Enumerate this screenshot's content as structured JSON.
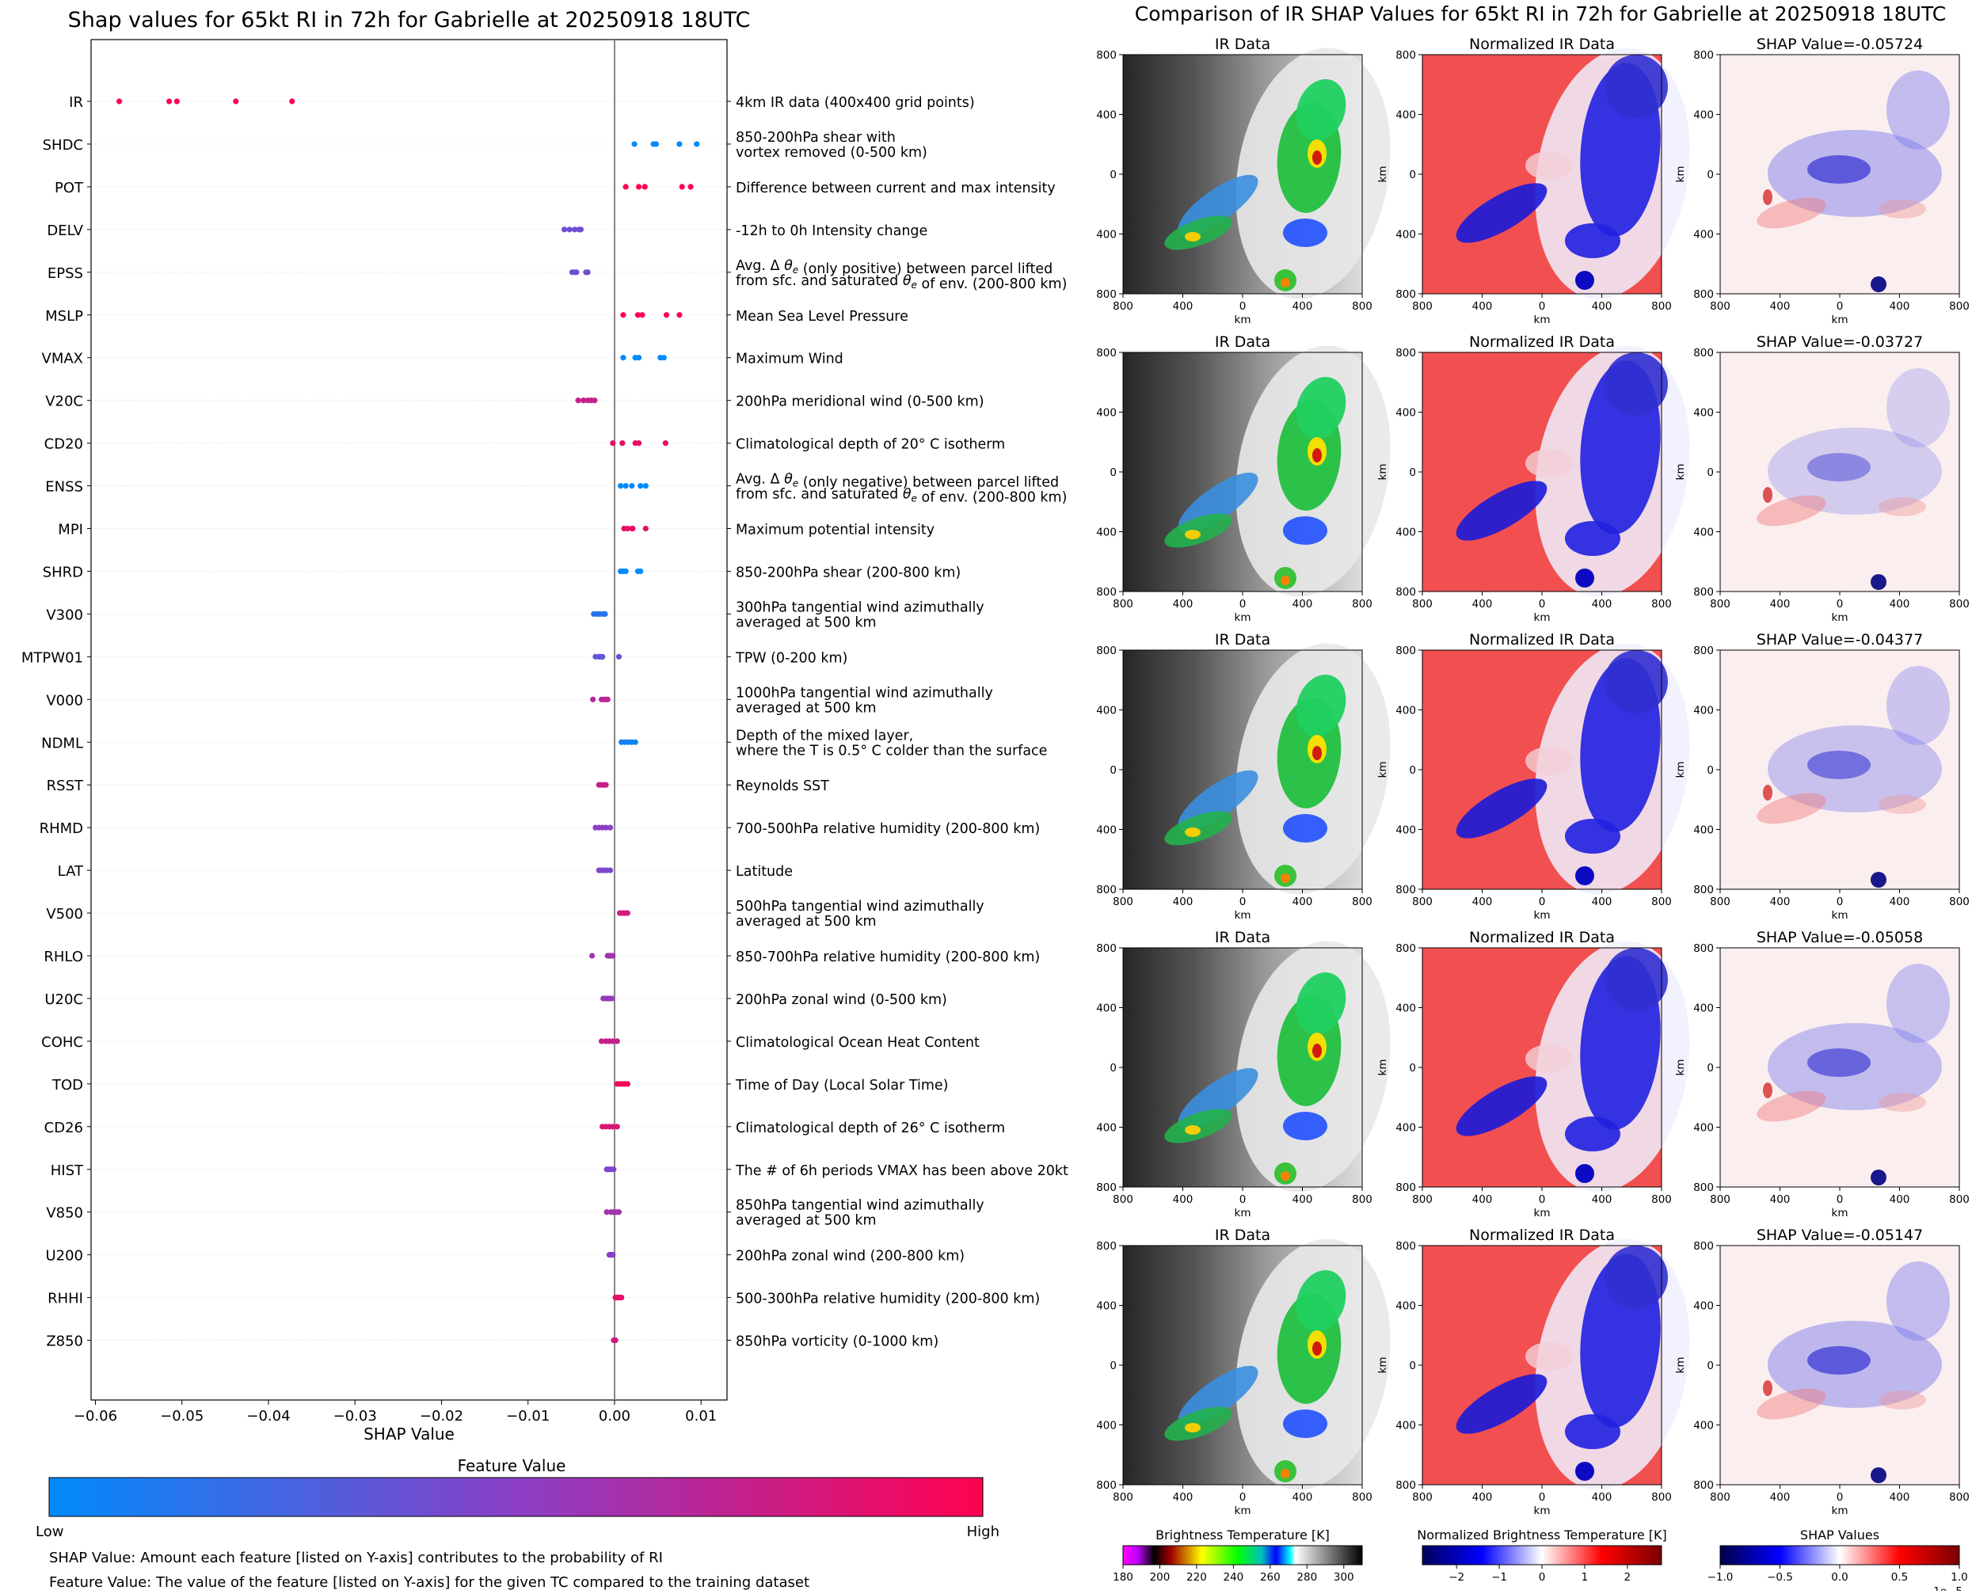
{
  "left_title": "Shap values for 65kt RI in 72h for Gabrielle at 20250918 18UTC",
  "right_title": "Comparison of IR SHAP Values for 65kt RI in 72h for Gabrielle at 20250918 18UTC",
  "colors": {
    "low": "#008afb",
    "mid": "#8a3fc6",
    "high": "#ff0150"
  },
  "chart_data": [
    {
      "type": "scatter",
      "title": "Shap values for 65kt RI in 72h for Gabrielle at 20250918 18UTC",
      "xlabel": "SHAP Value",
      "xlim": [
        -0.0605,
        0.013
      ],
      "xticks": [
        -0.06,
        -0.05,
        -0.04,
        -0.03,
        -0.02,
        -0.01,
        0.0,
        0.01
      ],
      "xtick_labels": [
        "−0.06",
        "−0.05",
        "−0.04",
        "−0.03",
        "−0.02",
        "−0.01",
        "0.00",
        "0.01"
      ],
      "colorbar": {
        "title": "Feature Value",
        "low_label": "Low",
        "high_label": "High"
      },
      "features": [
        {
          "name": "IR",
          "desc": [
            "4km IR data (400x400 grid points)"
          ],
          "fv": 1.0,
          "points": [
            -0.05724,
            -0.05147,
            -0.05058,
            -0.04377,
            -0.03727
          ]
        },
        {
          "name": "SHDC",
          "desc": [
            "850-200hPa shear with",
            "vortex removed (0-500 km)"
          ],
          "fv": 0.0,
          "points": [
            0.0023,
            0.0045,
            0.0048,
            0.0075,
            0.0095
          ]
        },
        {
          "name": "POT",
          "desc": [
            "Difference between current and max intensity"
          ],
          "fv": 1.0,
          "points": [
            0.0013,
            0.0028,
            0.0035,
            0.0078,
            0.0088
          ]
        },
        {
          "name": "DELV",
          "desc": [
            "-12h to 0h Intensity change"
          ],
          "fv": 0.4,
          "points": [
            -0.0058,
            -0.0052,
            -0.0046,
            -0.0041,
            -0.0039
          ]
        },
        {
          "name": "EPSS",
          "desc": [
            "Avg. Δ θe (only positive) between parcel lifted",
            "from sfc. and saturated θe of env. (200-800 km)"
          ],
          "fv": 0.4,
          "points": [
            -0.0049,
            -0.0046,
            -0.0044,
            -0.0033,
            -0.0031
          ]
        },
        {
          "name": "MSLP",
          "desc": [
            "Mean Sea Level Pressure"
          ],
          "fv": 1.0,
          "points": [
            0.001,
            0.0027,
            0.0032,
            0.006,
            0.0075
          ]
        },
        {
          "name": "VMAX",
          "desc": [
            "Maximum Wind"
          ],
          "fv": 0.0,
          "points": [
            0.001,
            0.0024,
            0.0028,
            0.0053,
            0.0057
          ]
        },
        {
          "name": "V20C",
          "desc": [
            "200hPa meridional wind (0-500 km)"
          ],
          "fv": 0.75,
          "points": [
            -0.0042,
            -0.0036,
            -0.0031,
            -0.0027,
            -0.0023
          ]
        },
        {
          "name": "CD20",
          "desc": [
            "Climatological depth of 20° C isotherm"
          ],
          "fv": 0.9,
          "points": [
            -0.0002,
            0.0009,
            0.0024,
            0.0028,
            0.0059
          ]
        },
        {
          "name": "ENSS",
          "desc": [
            "Avg. Δ θe (only negative) between parcel lifted",
            "from sfc. and saturated θe of env. (200-800 km)"
          ],
          "fv": 0.0,
          "points": [
            0.0007,
            0.0013,
            0.002,
            0.003,
            0.0036
          ]
        },
        {
          "name": "MPI",
          "desc": [
            "Maximum potential intensity"
          ],
          "fv": 0.9,
          "points": [
            0.0011,
            0.0015,
            0.002,
            0.0021,
            0.0036
          ]
        },
        {
          "name": "SHRD",
          "desc": [
            "850-200hPa shear (200-800 km)"
          ],
          "fv": 0.0,
          "points": [
            0.0007,
            0.001,
            0.0013,
            0.0027,
            0.003
          ]
        },
        {
          "name": "V300",
          "desc": [
            "300hPa tangential wind azimuthally",
            "averaged at 500 km"
          ],
          "fv": 0.15,
          "points": [
            -0.0024,
            -0.002,
            -0.0017,
            -0.0013,
            -0.0011
          ]
        },
        {
          "name": "MTPW01",
          "desc": [
            "TPW (0-200 km)"
          ],
          "fv": 0.35,
          "points": [
            -0.0022,
            -0.0018,
            -0.0016,
            -0.0014,
            0.0005
          ]
        },
        {
          "name": "V000",
          "desc": [
            "1000hPa tangential wind azimuthally",
            "averaged at 500 km"
          ],
          "fv": 0.7,
          "points": [
            -0.0025,
            -0.0015,
            -0.0012,
            -0.001,
            -0.0008
          ]
        },
        {
          "name": "NDML",
          "desc": [
            "Depth of the mixed layer,",
            "where the T is 0.5° C colder than the surface"
          ],
          "fv": 0.05,
          "points": [
            0.0008,
            0.0012,
            0.0016,
            0.002,
            0.0024
          ]
        },
        {
          "name": "RSST",
          "desc": [
            "Reynolds SST"
          ],
          "fv": 0.75,
          "points": [
            -0.0018,
            -0.0016,
            -0.0014,
            -0.0012,
            -0.001
          ]
        },
        {
          "name": "RHMD",
          "desc": [
            "700-500hPa relative humidity (200-800 km)"
          ],
          "fv": 0.5,
          "points": [
            -0.0022,
            -0.0018,
            -0.0014,
            -0.001,
            -0.0005
          ]
        },
        {
          "name": "LAT",
          "desc": [
            "Latitude"
          ],
          "fv": 0.45,
          "points": [
            -0.0018,
            -0.0015,
            -0.0012,
            -0.0009,
            -0.0005
          ]
        },
        {
          "name": "V500",
          "desc": [
            "500hPa tangential wind azimuthally",
            "averaged at 500 km"
          ],
          "fv": 0.8,
          "points": [
            0.0006,
            0.0009,
            0.0011,
            0.0013,
            0.0015
          ]
        },
        {
          "name": "RHLO",
          "desc": [
            "850-700hPa relative humidity (200-800 km)"
          ],
          "fv": 0.6,
          "points": [
            -0.0026,
            -0.0008,
            -0.0006,
            -0.0004,
            -0.0002
          ]
        },
        {
          "name": "U20C",
          "desc": [
            "200hPa zonal wind (0-500 km)"
          ],
          "fv": 0.55,
          "points": [
            -0.0013,
            -0.001,
            -0.0008,
            -0.0006,
            -0.0003
          ]
        },
        {
          "name": "COHC",
          "desc": [
            "Climatological Ocean Heat Content"
          ],
          "fv": 0.75,
          "points": [
            -0.0015,
            -0.001,
            -0.0006,
            -0.0002,
            0.0003
          ]
        },
        {
          "name": "TOD",
          "desc": [
            "Time of Day (Local Solar Time)"
          ],
          "fv": 0.95,
          "points": [
            0.0003,
            0.0006,
            0.0009,
            0.0012,
            0.0015
          ]
        },
        {
          "name": "CD26",
          "desc": [
            "Climatological depth of 26° C isotherm"
          ],
          "fv": 0.85,
          "points": [
            -0.0014,
            -0.001,
            -0.0006,
            -0.0002,
            0.0003
          ]
        },
        {
          "name": "HIST",
          "desc": [
            "The # of 6h periods VMAX has been above 20kt"
          ],
          "fv": 0.45,
          "points": [
            -0.0009,
            -0.0007,
            -0.0005,
            -0.0003,
            -0.0001
          ]
        },
        {
          "name": "V850",
          "desc": [
            "850hPa tangential wind azimuthally",
            "averaged at 500 km"
          ],
          "fv": 0.6,
          "points": [
            -0.0009,
            -0.0004,
            -0.0001,
            0.0002,
            0.0005
          ]
        },
        {
          "name": "U200",
          "desc": [
            "200hPa zonal wind (200-800 km)"
          ],
          "fv": 0.5,
          "points": [
            -0.0006,
            -0.0005,
            -0.0004,
            -0.0003,
            -0.0002
          ]
        },
        {
          "name": "RHHI",
          "desc": [
            "500-300hPa relative humidity (200-800 km)"
          ],
          "fv": 0.9,
          "points": [
            0.0001,
            0.0002,
            0.0004,
            0.0006,
            0.0008
          ]
        },
        {
          "name": "Z850",
          "desc": [
            "850hPa vorticity (0-1000 km)"
          ],
          "fv": 0.8,
          "points": [
            -0.0001,
            0.0,
            0.0,
            0.0001,
            0.0001
          ]
        }
      ]
    },
    {
      "type": "heatmap",
      "title": "Comparison of IR SHAP Values for 65kt RI in 72h for Gabrielle at 20250918 18UTC",
      "column_titles": [
        "IR Data",
        "Normalized IR Data"
      ],
      "shap_titles": [
        "SHAP Value=-0.05724",
        "SHAP Value=-0.03727",
        "SHAP Value=-0.04377",
        "SHAP Value=-0.05058",
        "SHAP Value=-0.05147"
      ],
      "axis_ticks": [
        "800",
        "400",
        "0",
        "400",
        "800"
      ],
      "axis_label": "km",
      "colorbars": [
        {
          "title": "Brightness Temperature [K]",
          "ticks": [
            "180",
            "200",
            "220",
            "240",
            "260",
            "280",
            "300"
          ]
        },
        {
          "title": "Normalized Brightness Temperature [K]",
          "ticks": [
            "−2",
            "−1",
            "0",
            "1",
            "2"
          ]
        },
        {
          "title": "SHAP Values",
          "ticks": [
            "−1.0",
            "−0.5",
            "0.0",
            "0.5",
            "1.0"
          ],
          "exponent": "1e−5"
        }
      ]
    }
  ],
  "footnotes": [
    "SHAP Value: Amount each feature [listed on Y-axis] contributes to the probability of RI",
    "Feature Value: The value of the feature [listed on Y-axis] for the given TC compared to the training dataset"
  ]
}
